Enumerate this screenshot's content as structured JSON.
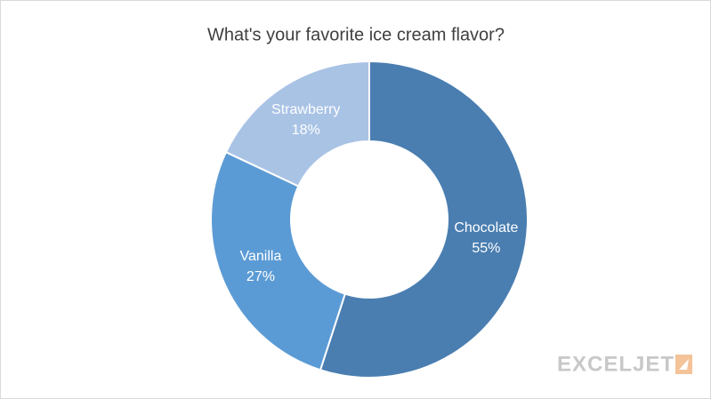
{
  "chart_data": {
    "type": "donut",
    "title": "What's your favorite ice cream flavor?",
    "categories": [
      "Chocolate",
      "Vanilla",
      "Strawberry"
    ],
    "values": [
      55,
      27,
      18
    ],
    "value_labels": [
      "55%",
      "27%",
      "18%"
    ],
    "colors": [
      "#4a7eb1",
      "#5b9bd5",
      "#a9c3e5"
    ]
  },
  "watermark": "EXCELJET"
}
